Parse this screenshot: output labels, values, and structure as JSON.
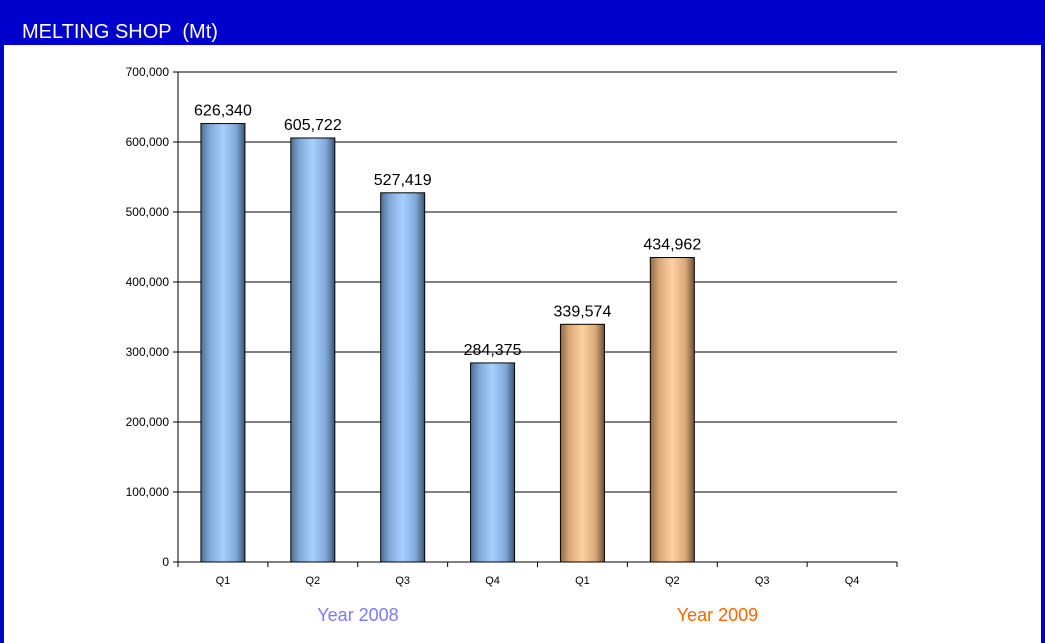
{
  "header": {
    "title": "MELTING SHOP  (Mt)"
  },
  "chart_data": {
    "type": "bar",
    "categories": [
      "Q1",
      "Q2",
      "Q3",
      "Q4",
      "Q1",
      "Q2",
      "Q3",
      "Q4"
    ],
    "values": [
      626340,
      605722,
      527419,
      284375,
      339574,
      434962,
      null,
      null
    ],
    "value_labels": [
      "626,340",
      "605,722",
      "527,419",
      "284,375",
      "339,574",
      "434,962",
      "",
      ""
    ],
    "groups": [
      {
        "name": "Year 2008",
        "color": "#7b7bff",
        "bar_color": "#8ab8f0"
      },
      {
        "name": "Year 2009",
        "color": "#ff6600",
        "bar_color": "#f6c08a"
      }
    ],
    "y_ticks": [
      "0",
      "100,000",
      "200,000",
      "300,000",
      "400,000",
      "500,000",
      "600,000",
      "700,000"
    ],
    "ylim": [
      0,
      700000
    ],
    "grid": true,
    "title": "",
    "xlabel": "",
    "ylabel": ""
  },
  "colors": {
    "frame": "#0000cc",
    "header_text": "#ffffff"
  }
}
